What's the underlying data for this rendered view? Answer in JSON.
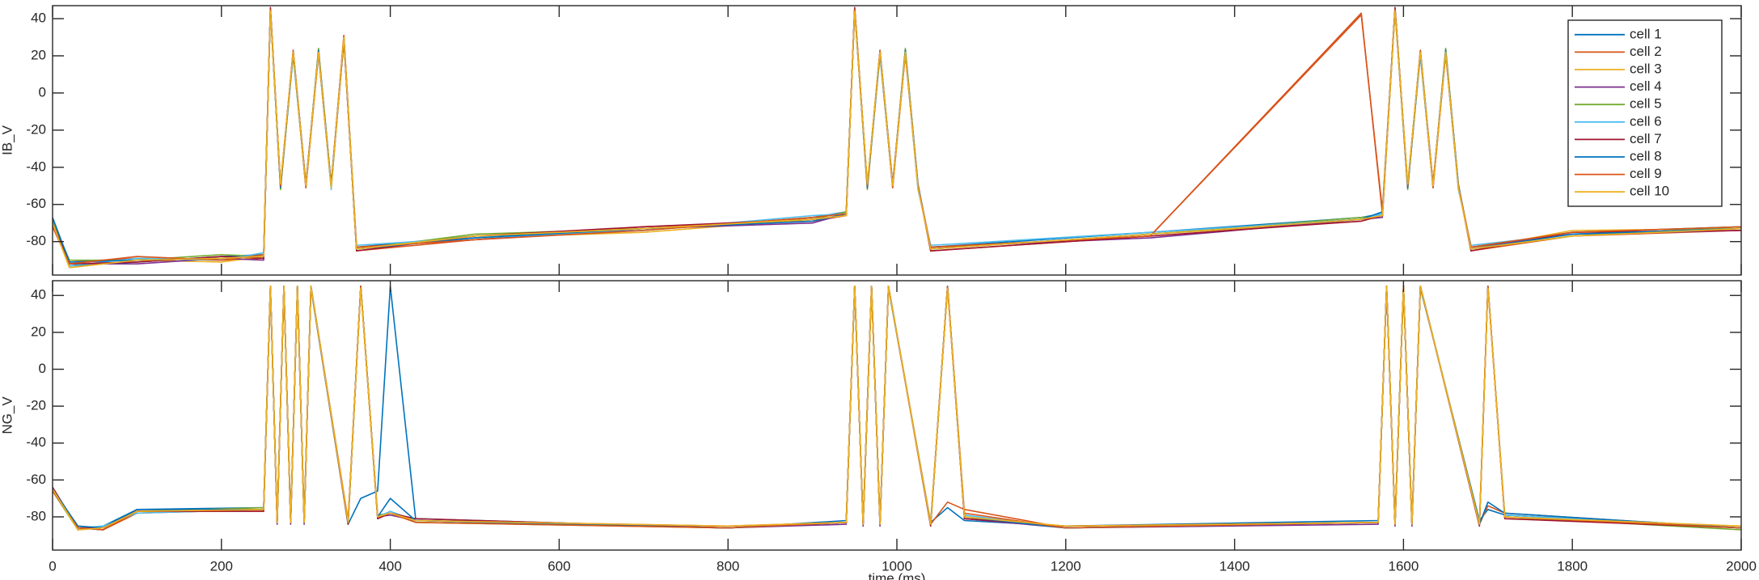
{
  "chart_data": [
    {
      "type": "line",
      "ylabel": "IB_V",
      "legend": "northeast",
      "xtick_labels": false,
      "xlim": [
        0,
        2000
      ],
      "ylim": [
        -98,
        47
      ],
      "xticks": [
        0,
        200,
        400,
        600,
        800,
        1000,
        1200,
        1400,
        1600,
        1800,
        2000
      ],
      "yticks": [
        -80,
        -60,
        -40,
        -20,
        0,
        20,
        40
      ],
      "x": [
        0,
        20,
        100,
        200,
        250,
        258,
        270,
        285,
        300,
        315,
        330,
        345,
        360,
        500,
        700,
        900,
        940,
        950,
        965,
        980,
        995,
        1010,
        1025,
        1040,
        1300,
        1550,
        1575,
        1590,
        1605,
        1620,
        1635,
        1650,
        1665,
        1680,
        1800,
        2000
      ],
      "series": [
        {
          "name": "cell 1",
          "color": "#0072BD",
          "values": [
            -68,
            -93,
            -91,
            -88,
            -87,
            44,
            -51,
            23,
            -49,
            21,
            -51,
            29,
            -83,
            -77,
            -74,
            -67,
            -64,
            44,
            -51,
            23,
            -49,
            21,
            -51,
            -83,
            -75,
            -67,
            -65,
            44,
            -51,
            23,
            -49,
            21,
            -51,
            -83,
            -75,
            -72
          ]
        },
        {
          "name": "cell 2",
          "color": "#D95319",
          "values": [
            -72,
            -91,
            -89,
            -90,
            -89,
            45,
            -50,
            22,
            -50,
            22,
            -50,
            31,
            -85,
            -79,
            -72,
            -69,
            -66,
            45,
            -50,
            22,
            -50,
            22,
            -50,
            -85,
            -77,
            42,
            -63,
            45,
            -50,
            22,
            -50,
            22,
            -50,
            -85,
            -77,
            -74
          ]
        },
        {
          "name": "cell 3",
          "color": "#EDB120",
          "values": [
            -70,
            -94,
            -90,
            -91,
            -88,
            46,
            -49,
            21,
            -50,
            23,
            -50,
            30,
            -84,
            -78,
            -75,
            -68,
            -66,
            46,
            -49,
            21,
            -50,
            23,
            -50,
            -84,
            -76,
            -69,
            -66,
            46,
            -49,
            21,
            -50,
            23,
            -50,
            -84,
            -74,
            -73
          ]
        },
        {
          "name": "cell 4",
          "color": "#7E2F8E",
          "values": [
            -71,
            -92,
            -92,
            -89,
            -90,
            45,
            -50,
            22,
            -51,
            22,
            -50,
            28,
            -83,
            -79,
            -73,
            -70,
            -65,
            45,
            -50,
            22,
            -51,
            22,
            -50,
            -83,
            -78,
            -68,
            -67,
            45,
            -50,
            22,
            -51,
            22,
            -50,
            -83,
            -76,
            -74
          ]
        },
        {
          "name": "cell 5",
          "color": "#77AC30",
          "values": [
            -69,
            -90,
            -90,
            -87,
            -88,
            45,
            -52,
            22,
            -50,
            24,
            -50,
            30,
            -84,
            -76,
            -73,
            -68,
            -64,
            45,
            -52,
            22,
            -50,
            24,
            -50,
            -84,
            -76,
            -67,
            -66,
            45,
            -52,
            22,
            -50,
            24,
            -50,
            -84,
            -77,
            -72
          ]
        },
        {
          "name": "cell 6",
          "color": "#4DBEEE",
          "values": [
            -70,
            -93,
            -89,
            -90,
            -86,
            44,
            -50,
            20,
            -50,
            22,
            -52,
            30,
            -82,
            -78,
            -74,
            -66,
            -65,
            44,
            -50,
            20,
            -50,
            22,
            -52,
            -82,
            -75,
            -68,
            -65,
            44,
            -50,
            20,
            -50,
            22,
            -52,
            -82,
            -76,
            -73
          ]
        },
        {
          "name": "cell 7",
          "color": "#A2142F",
          "values": [
            -70,
            -92,
            -91,
            -88,
            -89,
            46,
            -50,
            22,
            -49,
            22,
            -50,
            29,
            -85,
            -77,
            -72,
            -68,
            -66,
            46,
            -50,
            22,
            -49,
            22,
            -50,
            -85,
            -77,
            -69,
            -66,
            46,
            -50,
            22,
            -49,
            22,
            -50,
            -85,
            -75,
            -74
          ]
        },
        {
          "name": "cell 8",
          "color": "#0072BD",
          "values": [
            -67,
            -91,
            -90,
            -89,
            -88,
            45,
            -51,
            21,
            -50,
            23,
            -49,
            30,
            -84,
            -78,
            -73,
            -69,
            -65,
            45,
            -51,
            21,
            -50,
            23,
            -49,
            -84,
            -76,
            -68,
            -64,
            45,
            -51,
            21,
            -50,
            23,
            -49,
            -84,
            -76,
            -73
          ]
        },
        {
          "name": "cell 9",
          "color": "#D95319",
          "values": [
            -72,
            -92,
            -88,
            -90,
            -87,
            45,
            -50,
            23,
            -51,
            21,
            -50,
            31,
            -83,
            -79,
            -74,
            -67,
            -65,
            45,
            -50,
            23,
            -51,
            21,
            -50,
            -83,
            -77,
            43,
            -65,
            45,
            -50,
            23,
            -51,
            21,
            -50,
            -83,
            -75,
            -72
          ]
        },
        {
          "name": "cell 10",
          "color": "#EDB120",
          "values": [
            -70,
            -94,
            -90,
            -89,
            -88,
            44,
            -49,
            22,
            -50,
            22,
            -51,
            30,
            -84,
            -77,
            -73,
            -68,
            -66,
            44,
            -49,
            22,
            -50,
            22,
            -51,
            -84,
            -76,
            -68,
            -66,
            44,
            -49,
            22,
            -50,
            22,
            -51,
            -84,
            -77,
            -73
          ]
        }
      ]
    },
    {
      "type": "line",
      "ylabel": "NG_V",
      "xlabel": "time (ms)",
      "xlim": [
        0,
        2000
      ],
      "ylim": [
        -98,
        48
      ],
      "xticks": [
        0,
        200,
        400,
        600,
        800,
        1000,
        1200,
        1400,
        1600,
        1800,
        2000
      ],
      "yticks": [
        -80,
        -60,
        -40,
        -20,
        0,
        20,
        40
      ],
      "x": [
        0,
        30,
        60,
        100,
        250,
        258,
        266,
        274,
        282,
        290,
        298,
        306,
        350,
        365,
        385,
        400,
        430,
        800,
        940,
        950,
        960,
        970,
        980,
        990,
        1040,
        1060,
        1080,
        1200,
        1570,
        1580,
        1590,
        1600,
        1610,
        1620,
        1690,
        1700,
        1720,
        2000
      ],
      "series": [
        {
          "color": "#0072BD",
          "values": [
            -64,
            -87,
            -85,
            -76,
            -75,
            44,
            -82,
            44,
            -82,
            44,
            -82,
            44,
            -84,
            -70,
            -66,
            45,
            -81,
            -86,
            -82,
            44,
            -83,
            44,
            -83,
            44,
            -83,
            -75,
            -82,
            -85,
            -82,
            44,
            -83,
            44,
            -83,
            44,
            -82,
            -76,
            -79,
            -86
          ]
        },
        {
          "color": "#D95319",
          "values": [
            -66,
            -86,
            -87,
            -78,
            -76,
            45,
            -83,
            45,
            -83,
            45,
            -83,
            45,
            -83,
            45,
            -80,
            -78,
            -82,
            -85,
            -83,
            45,
            -84,
            45,
            -84,
            45,
            -84,
            -72,
            -76,
            -86,
            -83,
            45,
            -84,
            45,
            -84,
            45,
            -84,
            -74,
            -78,
            -86
          ]
        },
        {
          "color": "#EDB120",
          "values": [
            -65,
            -85,
            -86,
            -77,
            -77,
            45,
            -83,
            45,
            -83,
            45,
            -83,
            45,
            -82,
            44,
            -81,
            -78,
            -82,
            -86,
            -83,
            45,
            -84,
            45,
            -84,
            45,
            -83,
            45,
            -80,
            -86,
            -83,
            45,
            -84,
            45,
            -84,
            45,
            -84,
            45,
            -81,
            -85
          ]
        },
        {
          "color": "#7E2F8E",
          "values": [
            -65,
            -86,
            -87,
            -76,
            -76,
            45,
            -84,
            45,
            -84,
            45,
            -84,
            45,
            -83,
            45,
            -80,
            -79,
            -82,
            -86,
            -84,
            45,
            -85,
            45,
            -85,
            45,
            -84,
            44,
            -81,
            -86,
            -84,
            45,
            -85,
            45,
            -85,
            45,
            -84,
            45,
            -80,
            -86
          ]
        },
        {
          "color": "#77AC30",
          "values": [
            -66,
            -87,
            -86,
            -77,
            -75,
            45,
            -83,
            45,
            -83,
            45,
            -83,
            45,
            -83,
            44,
            -79,
            -78,
            -83,
            -86,
            -83,
            45,
            -84,
            45,
            -84,
            45,
            -84,
            45,
            -80,
            -86,
            -83,
            45,
            -84,
            45,
            -84,
            45,
            -83,
            45,
            -80,
            -87
          ]
        },
        {
          "color": "#4DBEEE",
          "values": [
            -65,
            -86,
            -85,
            -78,
            -76,
            45,
            -82,
            45,
            -82,
            45,
            -82,
            45,
            -83,
            45,
            -80,
            -77,
            -82,
            -86,
            -83,
            45,
            -83,
            45,
            -83,
            45,
            -84,
            45,
            -79,
            -86,
            -83,
            45,
            -83,
            45,
            -83,
            45,
            -84,
            45,
            -79,
            -86
          ]
        },
        {
          "color": "#A2142F",
          "values": [
            -64,
            -86,
            -86,
            -77,
            -77,
            45,
            -83,
            45,
            -83,
            45,
            -83,
            45,
            -84,
            45,
            -81,
            -78,
            -81,
            -86,
            -83,
            45,
            -84,
            45,
            -84,
            45,
            -85,
            45,
            -81,
            -85,
            -83,
            45,
            -84,
            45,
            -84,
            45,
            -85,
            45,
            -81,
            -86
          ]
        },
        {
          "color": "#0072BD",
          "values": [
            -65,
            -85,
            -86,
            -76,
            -76,
            45,
            -83,
            45,
            -83,
            45,
            -83,
            45,
            -83,
            45,
            -80,
            -70,
            -82,
            -86,
            -83,
            45,
            -84,
            45,
            -84,
            45,
            -84,
            45,
            -80,
            -86,
            -83,
            45,
            -84,
            45,
            -84,
            45,
            -84,
            -72,
            -78,
            -86
          ]
        },
        {
          "color": "#D95319",
          "values": [
            -66,
            -86,
            -87,
            -77,
            -76,
            45,
            -83,
            45,
            -83,
            45,
            -83,
            45,
            -82,
            45,
            -80,
            -78,
            -83,
            -86,
            -83,
            45,
            -84,
            45,
            -84,
            45,
            -84,
            45,
            -78,
            -86,
            -83,
            45,
            -84,
            45,
            -84,
            45,
            -84,
            45,
            -80,
            -86
          ]
        },
        {
          "color": "#EDB120",
          "values": [
            -65,
            -87,
            -86,
            -77,
            -76,
            45,
            -83,
            45,
            -83,
            45,
            -83,
            45,
            -83,
            44,
            -80,
            -78,
            -82,
            -85,
            -83,
            45,
            -84,
            45,
            -84,
            45,
            -84,
            44,
            -80,
            -85,
            -83,
            45,
            -84,
            45,
            -84,
            45,
            -84,
            44,
            -80,
            -85
          ]
        }
      ]
    }
  ]
}
